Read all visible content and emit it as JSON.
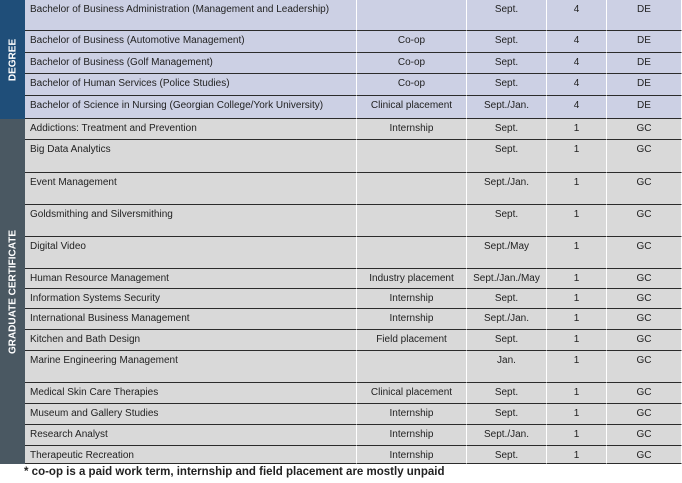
{
  "groups": [
    {
      "label": "DEGREE",
      "rows": [
        [
          "Bachelor of Business Administration (Management and Leadership)",
          null,
          "Sept.",
          "4",
          "DE"
        ],
        [
          "Bachelor of Business (Automotive Management)",
          "Co-op",
          "Sept.",
          "4",
          "DE"
        ],
        [
          "Bachelor of Business (Golf Management)",
          "Co-op",
          "Sept.",
          "4",
          "DE"
        ],
        [
          "Bachelor of Human Services (Police Studies)",
          "Co-op",
          "Sept.",
          "4",
          "DE"
        ],
        [
          "Bachelor of Science in Nursing (Georgian College/York University)",
          "Clinical placement",
          "Sept./Jan.",
          "4",
          "DE"
        ]
      ]
    },
    {
      "label": "GRADUATE CERTIFICATE",
      "rows": [
        [
          "Addictions: Treatment and Prevention",
          "Internship",
          "Sept.",
          "1",
          "GC"
        ],
        [
          "Big Data Analytics",
          null,
          "Sept.",
          "1",
          "GC"
        ],
        [
          "Event Management",
          null,
          "Sept./Jan.",
          "1",
          "GC"
        ],
        [
          "Goldsmithing and Silversmithing",
          null,
          "Sept.",
          "1",
          "GC"
        ],
        [
          "Digital Video",
          null,
          "Sept./May",
          "1",
          "GC"
        ],
        [
          "Human Resource Management",
          "Industry placement",
          "Sept./Jan./May",
          "1",
          "GC"
        ],
        [
          "Information Systems Security",
          "Internship",
          "Sept.",
          "1",
          "GC"
        ],
        [
          "International Business Management",
          "Internship",
          "Sept./Jan.",
          "1",
          "GC"
        ],
        [
          "Kitchen and Bath Design",
          "Field placement",
          "Sept.",
          "1",
          "GC"
        ],
        [
          "Marine Engineering Management",
          null,
          "Jan.",
          "1",
          "GC"
        ],
        [
          "Medical Skin Care Therapies",
          "Clinical placement",
          "Sept.",
          "1",
          "GC"
        ],
        [
          "Museum and Gallery Studies",
          "Internship",
          "Sept.",
          "1",
          "GC"
        ],
        [
          "Research Analyst",
          "Internship",
          "Sept./Jan.",
          "1",
          "GC"
        ],
        [
          "Therapeutic Recreation",
          "Internship",
          "Sept.",
          "1",
          "GC"
        ]
      ]
    }
  ],
  "footnote": "* co-op is a paid work term, internship and field placement are mostly unpaid"
}
